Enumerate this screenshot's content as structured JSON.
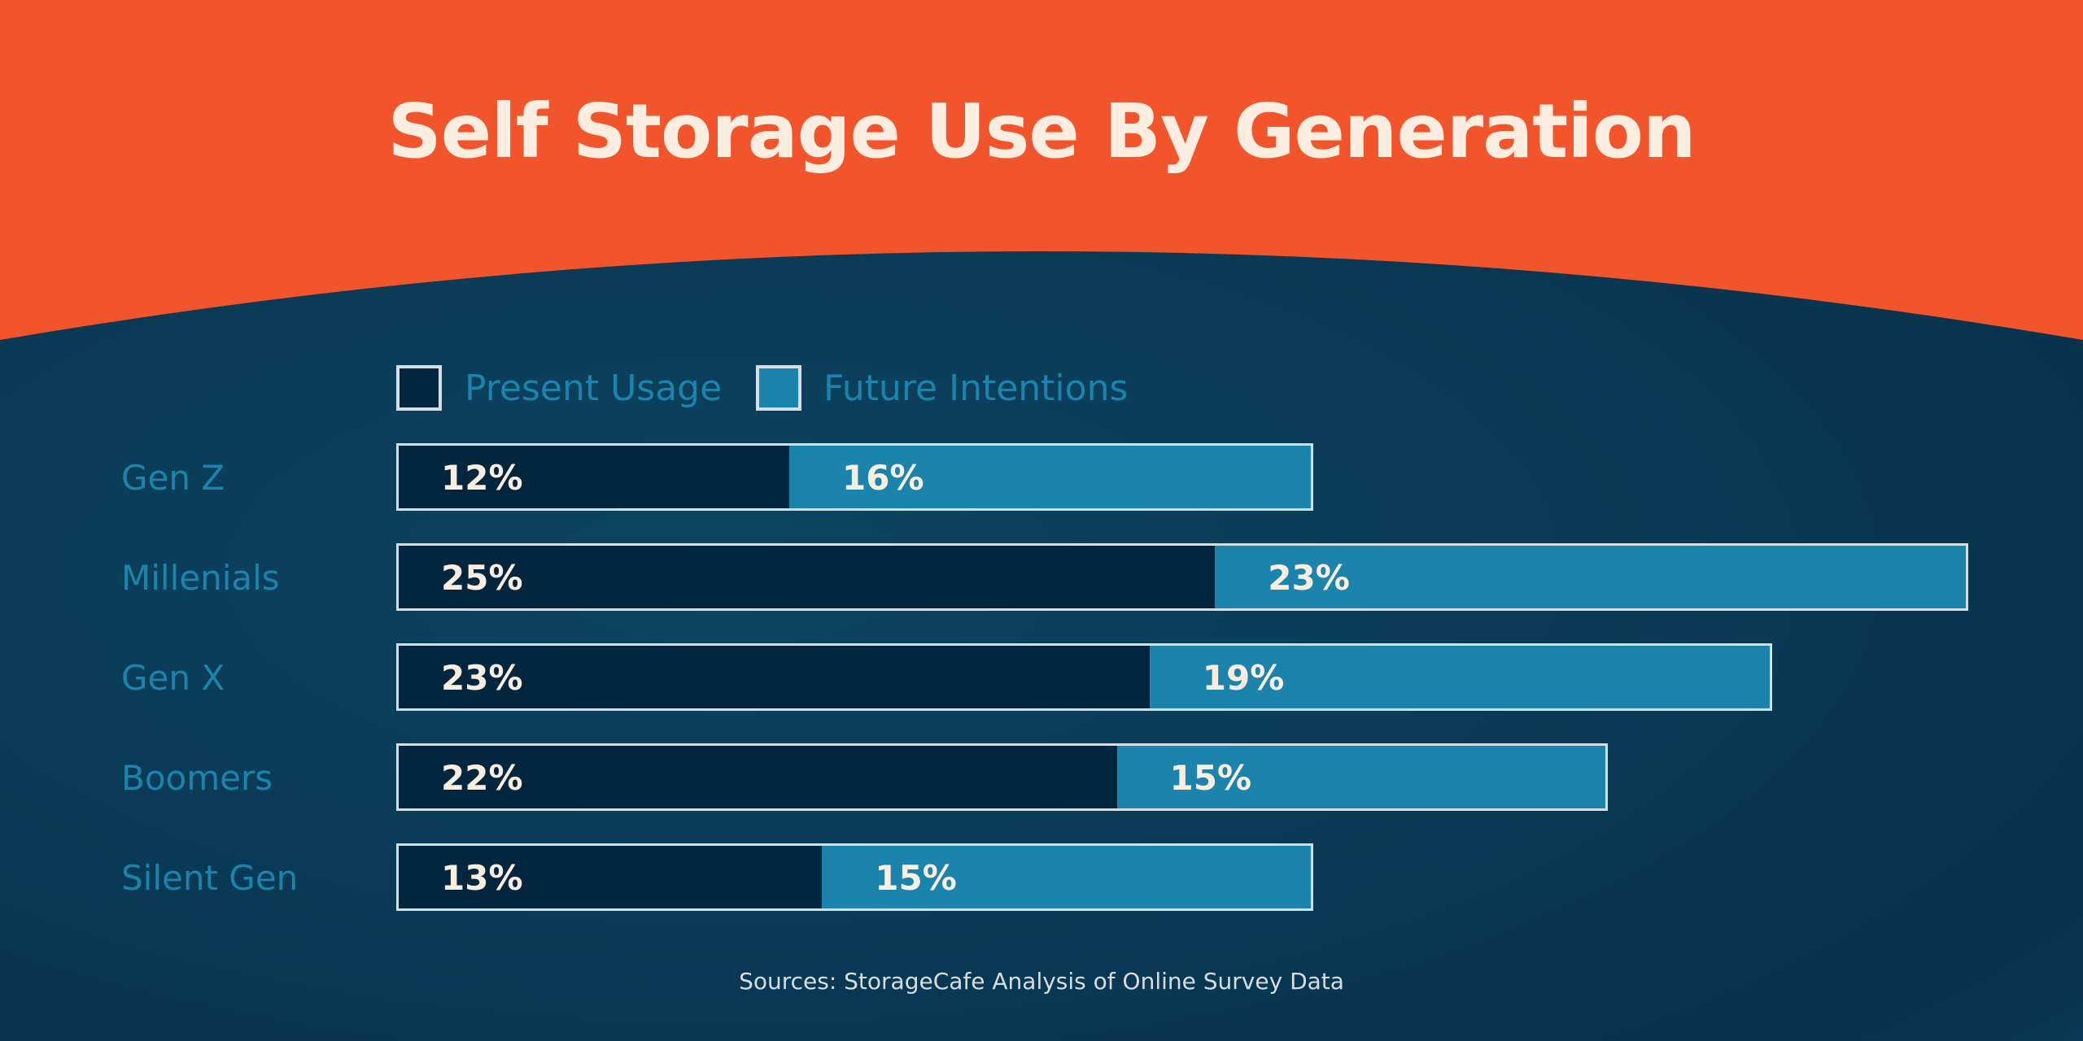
{
  "chart_data": {
    "type": "bar",
    "orientation": "horizontal",
    "stacked": true,
    "title": "Self Storage Use By Generation",
    "categories": [
      "Gen Z",
      "Millenials",
      "Gen X",
      "Boomers",
      "Silent Gen"
    ],
    "series": [
      {
        "name": "Present Usage",
        "values": [
          12,
          25,
          23,
          22,
          13
        ],
        "labels": [
          "12%",
          "25%",
          "23%",
          "22%",
          "13%"
        ],
        "color": "#01263d"
      },
      {
        "name": "Future Intentions",
        "values": [
          16,
          23,
          19,
          15,
          15
        ],
        "labels": [
          "16%",
          "23%",
          "19%",
          "15%",
          "15%"
        ],
        "color": "#1b84ad"
      }
    ],
    "unit": "%",
    "legend_placement": "top-left",
    "grid": false,
    "source": "Sources: StorageCafe Analysis of Online Survey Data"
  },
  "colors": {
    "header": "#f2542b",
    "background": "#093a55",
    "label": "#1b84ad",
    "title": "#fbeee0"
  }
}
